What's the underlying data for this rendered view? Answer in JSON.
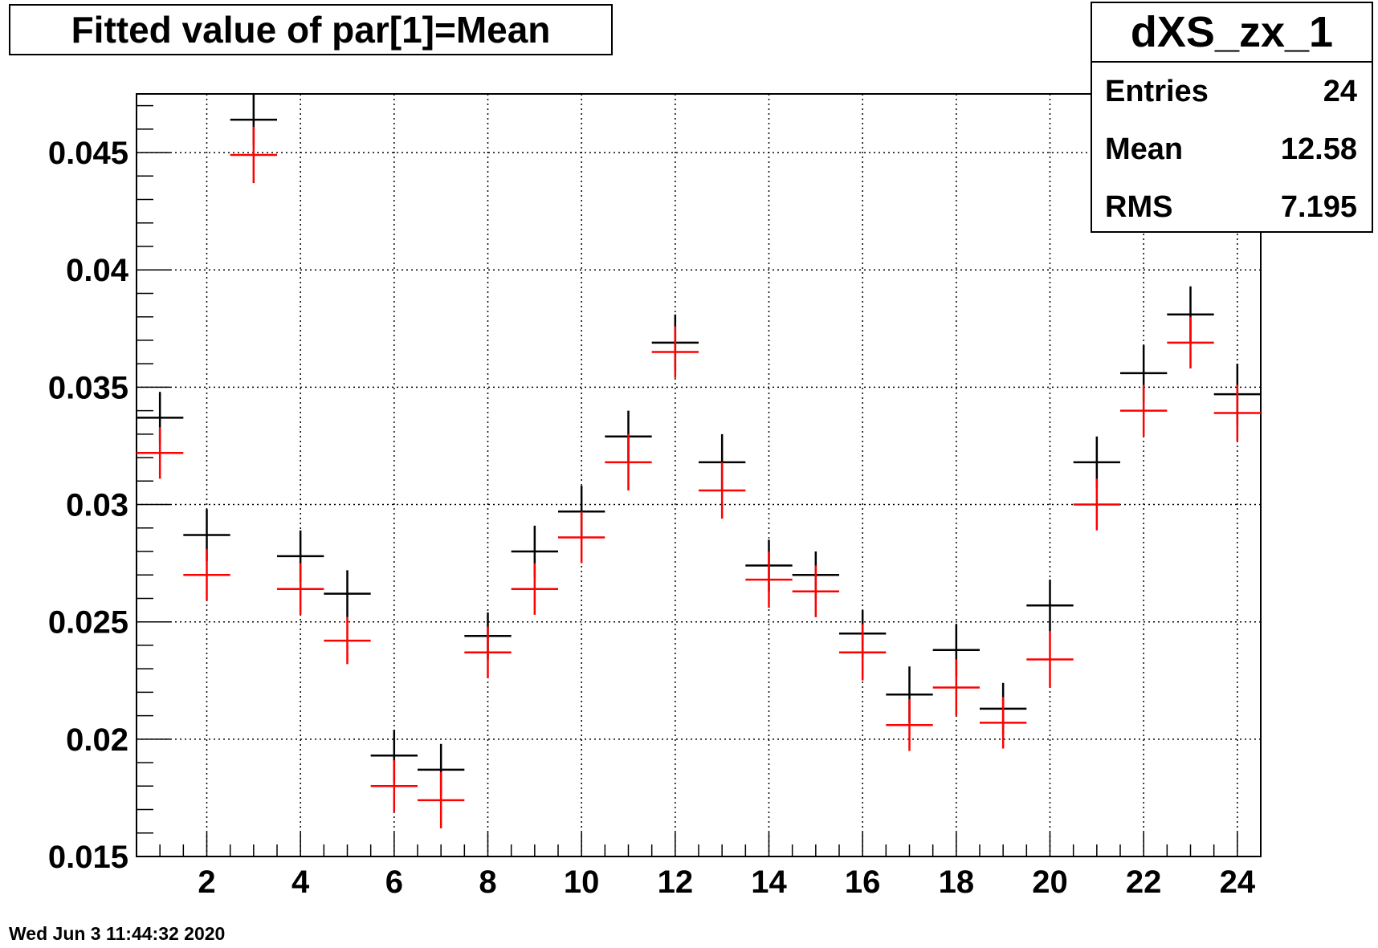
{
  "title": "Fitted value of par[1]=Mean",
  "stats": {
    "name": "dXS_zx_1",
    "entries_label": "Entries",
    "entries_value": "24",
    "mean_label": "Mean",
    "mean_value": "12.58",
    "rms_label": "RMS",
    "rms_value": "7.195"
  },
  "timestamp": "Wed Jun  3 11:44:32 2020",
  "chart_data": {
    "type": "scatter",
    "title": "Fitted value of par[1]=Mean",
    "xlabel": "",
    "ylabel": "",
    "xlim": [
      0.5,
      24.5
    ],
    "ylim": [
      0.015,
      0.0475
    ],
    "xticks": [
      2,
      4,
      6,
      8,
      10,
      12,
      14,
      16,
      18,
      20,
      22,
      24
    ],
    "yticks": [
      0.015,
      0.02,
      0.025,
      0.03,
      0.035,
      0.04,
      0.045
    ],
    "ytick_labels": [
      "0.015",
      "0.02",
      "0.025",
      "0.03",
      "0.035",
      "0.04",
      "0.045"
    ],
    "grid": true,
    "x": [
      1,
      2,
      3,
      4,
      5,
      6,
      7,
      8,
      9,
      10,
      11,
      12,
      13,
      14,
      15,
      16,
      17,
      18,
      19,
      20,
      21,
      22,
      23,
      24
    ],
    "series": [
      {
        "color": "#000000",
        "values": [
          0.0337,
          0.0287,
          0.0464,
          0.0278,
          0.0262,
          0.0193,
          0.0187,
          0.0244,
          0.028,
          0.0297,
          0.0329,
          0.0369,
          0.0318,
          0.0274,
          0.027,
          0.0245,
          0.0219,
          0.0238,
          0.0213,
          0.0257,
          0.0318,
          0.0356,
          0.0381,
          0.0347
        ],
        "errors": [
          0.0011,
          0.0011,
          0.0011,
          0.0011,
          0.001,
          0.0011,
          0.0011,
          0.001,
          0.0011,
          0.0011,
          0.0011,
          0.0012,
          0.0012,
          0.0011,
          0.001,
          0.001,
          0.0012,
          0.0011,
          0.0011,
          0.0011,
          0.0011,
          0.0012,
          0.0012,
          0.0013
        ]
      },
      {
        "color": "#ff0000",
        "values": [
          0.0322,
          0.027,
          0.0449,
          0.0264,
          0.0242,
          0.018,
          0.0174,
          0.0237,
          0.0264,
          0.0286,
          0.0318,
          0.0365,
          0.0306,
          0.0268,
          0.0263,
          0.0237,
          0.0206,
          0.0222,
          0.0207,
          0.0234,
          0.03,
          0.034,
          0.0369,
          0.0339
        ],
        "errors": [
          0.0011,
          0.0011,
          0.0012,
          0.0011,
          0.001,
          0.0011,
          0.0012,
          0.0011,
          0.0011,
          0.0011,
          0.0012,
          0.0011,
          0.0012,
          0.0012,
          0.0011,
          0.0012,
          0.0011,
          0.0012,
          0.0011,
          0.0012,
          0.0011,
          0.0011,
          0.0011,
          0.0012
        ]
      }
    ]
  }
}
